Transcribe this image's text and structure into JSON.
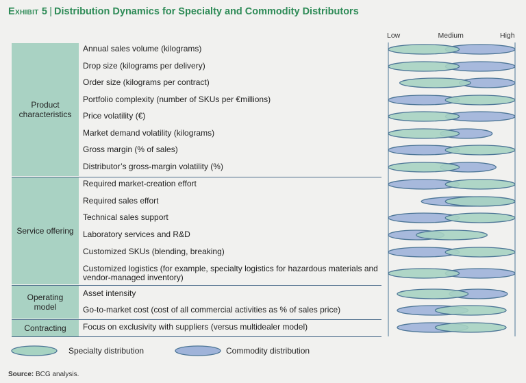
{
  "title": {
    "exhibit": "Exhibit 5",
    "separator": "|",
    "text": "Distribution Dynamics for Specialty and Commodity Distributors"
  },
  "colors": {
    "specialty": "#a7d3c2",
    "commodity": "#9fb3d9",
    "outline": "#4c7596",
    "group_bg": "#a9d2c3",
    "title": "#2e8b57"
  },
  "source": {
    "label": "Source:",
    "text": "BCG analysis."
  },
  "chart_data": {
    "type": "range",
    "x_scale": {
      "min": 0,
      "max": 1,
      "ticks": [
        {
          "value": 0,
          "label": "Low"
        },
        {
          "value": 0.5,
          "label": "Medium"
        },
        {
          "value": 1,
          "label": "High"
        }
      ]
    },
    "legend": [
      {
        "key": "specialty",
        "label": "Specialty distribution"
      },
      {
        "key": "commodity",
        "label": "Commodity distribution"
      }
    ],
    "groups": [
      {
        "label": "Product characteristics",
        "rows": [
          0,
          1,
          2,
          3,
          4,
          5,
          6,
          7
        ]
      },
      {
        "label": "Service offering",
        "rows": [
          8,
          9,
          10,
          11,
          12,
          13
        ]
      },
      {
        "label": "Operating model",
        "rows": [
          14,
          15
        ]
      },
      {
        "label": "Contracting",
        "rows": [
          16
        ]
      }
    ],
    "rows": [
      {
        "label": "Annual sales volume (kilograms)",
        "specialty": [
          0.0,
          0.56
        ],
        "commodity": [
          0.45,
          1.0
        ]
      },
      {
        "label": "Drop size (kilograms per delivery)",
        "specialty": [
          0.0,
          0.56
        ],
        "commodity": [
          0.45,
          1.0
        ]
      },
      {
        "label": "Order size (kilograms per contract)",
        "specialty": [
          0.09,
          0.65
        ],
        "commodity": [
          0.56,
          1.0
        ]
      },
      {
        "label": "Portfolio complexity (number of SKUs per €millions)",
        "specialty": [
          0.45,
          1.0
        ],
        "commodity": [
          0.0,
          0.56
        ]
      },
      {
        "label": "Price volatility (€)",
        "specialty": [
          0.0,
          0.56
        ],
        "commodity": [
          0.45,
          1.0
        ]
      },
      {
        "label": "Market demand volatility (kilograms)",
        "specialty": [
          0.0,
          0.56
        ],
        "commodity": [
          0.41,
          0.82
        ]
      },
      {
        "label": "Gross margin (% of sales)",
        "specialty": [
          0.45,
          1.0
        ],
        "commodity": [
          0.0,
          0.56
        ]
      },
      {
        "label": "Distributor’s gross-margin volatility (%)",
        "specialty": [
          0.0,
          0.56
        ],
        "commodity": [
          0.41,
          0.85
        ]
      },
      {
        "label": "Required market-creation effort",
        "specialty": [
          0.45,
          1.0
        ],
        "commodity": [
          0.0,
          0.56
        ]
      },
      {
        "label": "Required sales effort",
        "specialty": [
          0.45,
          1.0
        ],
        "commodity": [
          0.26,
          1.0
        ]
      },
      {
        "label": "Technical sales support",
        "specialty": [
          0.45,
          1.0
        ],
        "commodity": [
          0.0,
          0.56
        ]
      },
      {
        "label": "Laboratory services and R&D",
        "specialty": [
          0.22,
          0.78
        ],
        "commodity": [
          0.0,
          0.44
        ]
      },
      {
        "label": "Customized SKUs (blending, breaking)",
        "specialty": [
          0.45,
          1.0
        ],
        "commodity": [
          0.0,
          0.56
        ]
      },
      {
        "label": "Customized logistics (for example, specialty logistics for hazardous materials and vendor-managed inventory)",
        "specialty": [
          0.0,
          0.56
        ],
        "commodity": [
          0.45,
          1.0
        ]
      },
      {
        "label": "Asset intensity",
        "specialty": [
          0.07,
          0.63
        ],
        "commodity": [
          0.48,
          0.94
        ]
      },
      {
        "label": "Go-to-market cost (cost of all commercial activities as % of sales price)",
        "specialty": [
          0.37,
          0.93
        ],
        "commodity": [
          0.07,
          0.63
        ]
      },
      {
        "label": "Focus on exclusivity with suppliers (versus multidealer model)",
        "specialty": [
          0.37,
          0.93
        ],
        "commodity": [
          0.07,
          0.63
        ]
      }
    ]
  }
}
